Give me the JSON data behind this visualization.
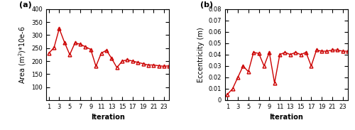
{
  "iterations": [
    1,
    2,
    3,
    4,
    5,
    6,
    7,
    8,
    9,
    10,
    11,
    12,
    13,
    14,
    15,
    16,
    17,
    18,
    19,
    20,
    21,
    22,
    23,
    24
  ],
  "area_values": [
    230,
    252,
    325,
    272,
    225,
    270,
    265,
    255,
    245,
    180,
    230,
    242,
    210,
    175,
    200,
    205,
    200,
    195,
    190,
    185,
    185,
    182,
    180,
    182
  ],
  "ecc_values": [
    0.005,
    0.01,
    0.02,
    0.03,
    0.025,
    0.042,
    0.041,
    0.03,
    0.042,
    0.015,
    0.04,
    0.042,
    0.04,
    0.042,
    0.04,
    0.042,
    0.03,
    0.044,
    0.043,
    0.043,
    0.044,
    0.044,
    0.043,
    0.043
  ],
  "color": "#cc0000",
  "marker": "^",
  "markersize": 3.5,
  "linewidth": 1.0,
  "area_ylabel": "Area (m$^2$)*10e-6",
  "ecc_ylabel": "Eccentricity (m)",
  "xlabel": "Iteration",
  "area_ylim": [
    50,
    400
  ],
  "area_yticks": [
    100,
    150,
    200,
    250,
    300,
    350,
    400
  ],
  "ecc_ylim": [
    0,
    0.08
  ],
  "ecc_yticks": [
    0,
    0.01,
    0.02,
    0.03,
    0.04,
    0.05,
    0.06,
    0.07,
    0.08
  ],
  "xticks": [
    1,
    3,
    5,
    7,
    9,
    11,
    13,
    15,
    17,
    19,
    21,
    23
  ],
  "label_a": "(a)",
  "label_b": "(b)",
  "markerfacecolor": "none",
  "markeredgewidth": 1.0,
  "xlabel_fontsize": 7,
  "ylabel_fontsize": 7,
  "tick_fontsize": 6,
  "label_fontsize": 8
}
